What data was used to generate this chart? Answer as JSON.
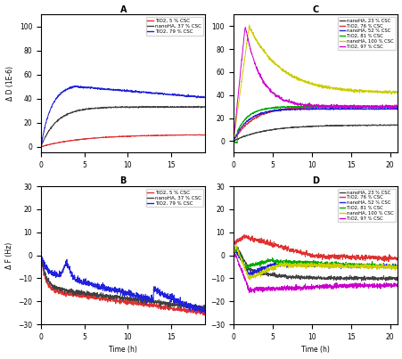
{
  "figsize": [
    4.52,
    4.03
  ],
  "dpi": 100,
  "panel_A": {
    "title": "A",
    "ylabel": "Δ D (1E-6)",
    "xlim": [
      0,
      19
    ],
    "ylim": [
      -5,
      110
    ],
    "yticks": [
      0,
      20,
      40,
      60,
      80,
      100
    ],
    "xticks": [
      0,
      5,
      10,
      15
    ],
    "legend": [
      {
        "label": "TiO2, 5 % CSC",
        "color": "#e03030"
      },
      {
        "label": "nanoHA, 37 % CSC",
        "color": "#404040"
      },
      {
        "label": "TiO2, 79 % CSC",
        "color": "#2020dd"
      }
    ]
  },
  "panel_B": {
    "title": "B",
    "ylabel": "Δ F (Hz)",
    "xlabel": "Time (h)",
    "xlim": [
      0,
      19
    ],
    "ylim": [
      -30,
      30
    ],
    "yticks": [
      -30,
      -20,
      -10,
      0,
      10,
      20,
      30
    ],
    "xticks": [
      0,
      5,
      10,
      15
    ],
    "legend": [
      {
        "label": "TiO2, 5 % CSC",
        "color": "#e03030"
      },
      {
        "label": "nanoHA, 37 % CSC",
        "color": "#404040"
      },
      {
        "label": "TiO2, 79 % CSC",
        "color": "#2020dd"
      }
    ]
  },
  "panel_C": {
    "title": "C",
    "xlim": [
      0,
      21
    ],
    "ylim": [
      -10,
      110
    ],
    "yticks": [
      0,
      20,
      40,
      60,
      80,
      100
    ],
    "xticks": [
      0,
      5,
      10,
      15,
      20
    ],
    "legend": [
      {
        "label": "nanoHA, 23 % CSC",
        "color": "#404040"
      },
      {
        "label": "TiO2, 76 % CSC",
        "color": "#e03030"
      },
      {
        "label": "nanoHA, 52 % CSC",
        "color": "#2020dd"
      },
      {
        "label": "TiO2, 81 % CSC",
        "color": "#00aa00"
      },
      {
        "label": "nanoHA, 100 % CSC",
        "color": "#cccc00"
      },
      {
        "label": "TiO2, 97 % CSC",
        "color": "#cc00cc"
      }
    ]
  },
  "panel_D": {
    "title": "D",
    "xlabel": "Time (h)",
    "xlim": [
      0,
      21
    ],
    "ylim": [
      -30,
      30
    ],
    "yticks": [
      -30,
      -20,
      -10,
      0,
      10,
      20,
      30
    ],
    "xticks": [
      0,
      5,
      10,
      15,
      20
    ],
    "legend": [
      {
        "label": "nanoHA, 23 % CSC",
        "color": "#404040"
      },
      {
        "label": "TiO2, 76 % CSC",
        "color": "#e03030"
      },
      {
        "label": "nanoHA, 52 % CSC",
        "color": "#2020dd"
      },
      {
        "label": "TiO2, 81 % CSC",
        "color": "#00aa00"
      },
      {
        "label": "nanoHA, 100 % CSC",
        "color": "#cccc00"
      },
      {
        "label": "TiO2, 97 % CSC",
        "color": "#cc00cc"
      }
    ]
  }
}
